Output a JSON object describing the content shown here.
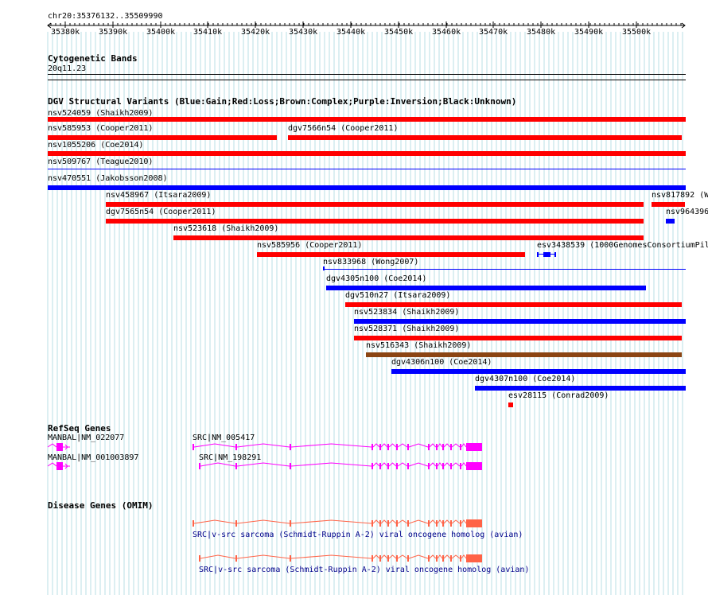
{
  "ruler": {
    "label": "chr20:35376132..35509990",
    "ticks": [
      "35380k",
      "35390k",
      "35400k",
      "35410k",
      "35420k",
      "35430k",
      "35440k",
      "35450k",
      "35460k",
      "35470k",
      "35480k",
      "35490k",
      "35500k"
    ]
  },
  "cytoband": {
    "title": "Cytogenetic Bands",
    "band": "20q11.23"
  },
  "dgv": {
    "title": "DGV Structural Variants (Blue:Gain;Red:Loss;Brown:Complex;Purple:Inversion;Black:Unknown)",
    "colors": {
      "gain": "#0000ff",
      "loss": "#ff0000",
      "complex": "#8b4513",
      "inversion": "#800080",
      "unknown": "#000000"
    },
    "variants": [
      {
        "label": "nsv524059 (Shaikh2009)",
        "type": "loss",
        "thin": false
      },
      {
        "label": "nsv585953 (Cooper2011)",
        "type": "loss",
        "thin": false
      },
      {
        "label": "dgv7566n54 (Cooper2011)",
        "type": "loss",
        "thin": false
      },
      {
        "label": "nsv1055206 (Coe2014)",
        "type": "loss",
        "thin": false
      },
      {
        "label": "nsv509767 (Teague2010)",
        "type": "gain",
        "thin": true
      },
      {
        "label": "nsv470551 (Jakobsson2008)",
        "type": "gain",
        "thin": false
      },
      {
        "label": "nsv458967 (Itsara2009)",
        "type": "loss",
        "thin": false
      },
      {
        "label": "nsv817892 (W",
        "type": "loss",
        "thin": false
      },
      {
        "label": "dgv7565n54 (Cooper2011)",
        "type": "loss",
        "thin": false
      },
      {
        "label": "nsv964396",
        "type": "gain",
        "thin": false
      },
      {
        "label": "nsv523618 (Shaikh2009)",
        "type": "loss",
        "thin": false
      },
      {
        "label": "nsv585956 (Cooper2011)",
        "type": "loss",
        "thin": false
      },
      {
        "label": "esv3438539 (1000GenomesConsortiumPil",
        "type": "gain",
        "thin": false
      },
      {
        "label": "nsv833968 (Wong2007)",
        "type": "gain",
        "thin": true
      },
      {
        "label": "dgv4305n100 (Coe2014)",
        "type": "gain",
        "thin": false
      },
      {
        "label": "dgv510n27 (Itsara2009)",
        "type": "loss",
        "thin": false
      },
      {
        "label": "nsv523834 (Shaikh2009)",
        "type": "gain",
        "thin": false
      },
      {
        "label": "nsv528371 (Shaikh2009)",
        "type": "loss",
        "thin": false
      },
      {
        "label": "nsv516343 (Shaikh2009)",
        "type": "complex",
        "thin": false
      },
      {
        "label": "dgv4306n100 (Coe2014)",
        "type": "gain",
        "thin": false
      },
      {
        "label": "dgv4307n100 (Coe2014)",
        "type": "gain",
        "thin": false
      },
      {
        "label": "esv28115 (Conrad2009)",
        "type": "loss",
        "thin": false
      }
    ]
  },
  "refseq": {
    "title": "RefSeq Genes",
    "color": "#ff00ff",
    "genes": [
      {
        "label": "MANBAL|NM_022077"
      },
      {
        "label": "SRC|NM_005417"
      },
      {
        "label": "MANBAL|NM_001003897"
      },
      {
        "label": "SRC|NM_198291"
      }
    ]
  },
  "omim": {
    "title": "Disease Genes (OMIM)",
    "color": "#ff6347",
    "genes": [
      {
        "label": "SRC|v-src sarcoma (Schmidt-Ruppin A-2) viral oncogene homolog (avian)"
      },
      {
        "label": "SRC|v-src sarcoma (Schmidt-Ruppin A-2) viral oncogene homolog (avian)"
      }
    ]
  }
}
